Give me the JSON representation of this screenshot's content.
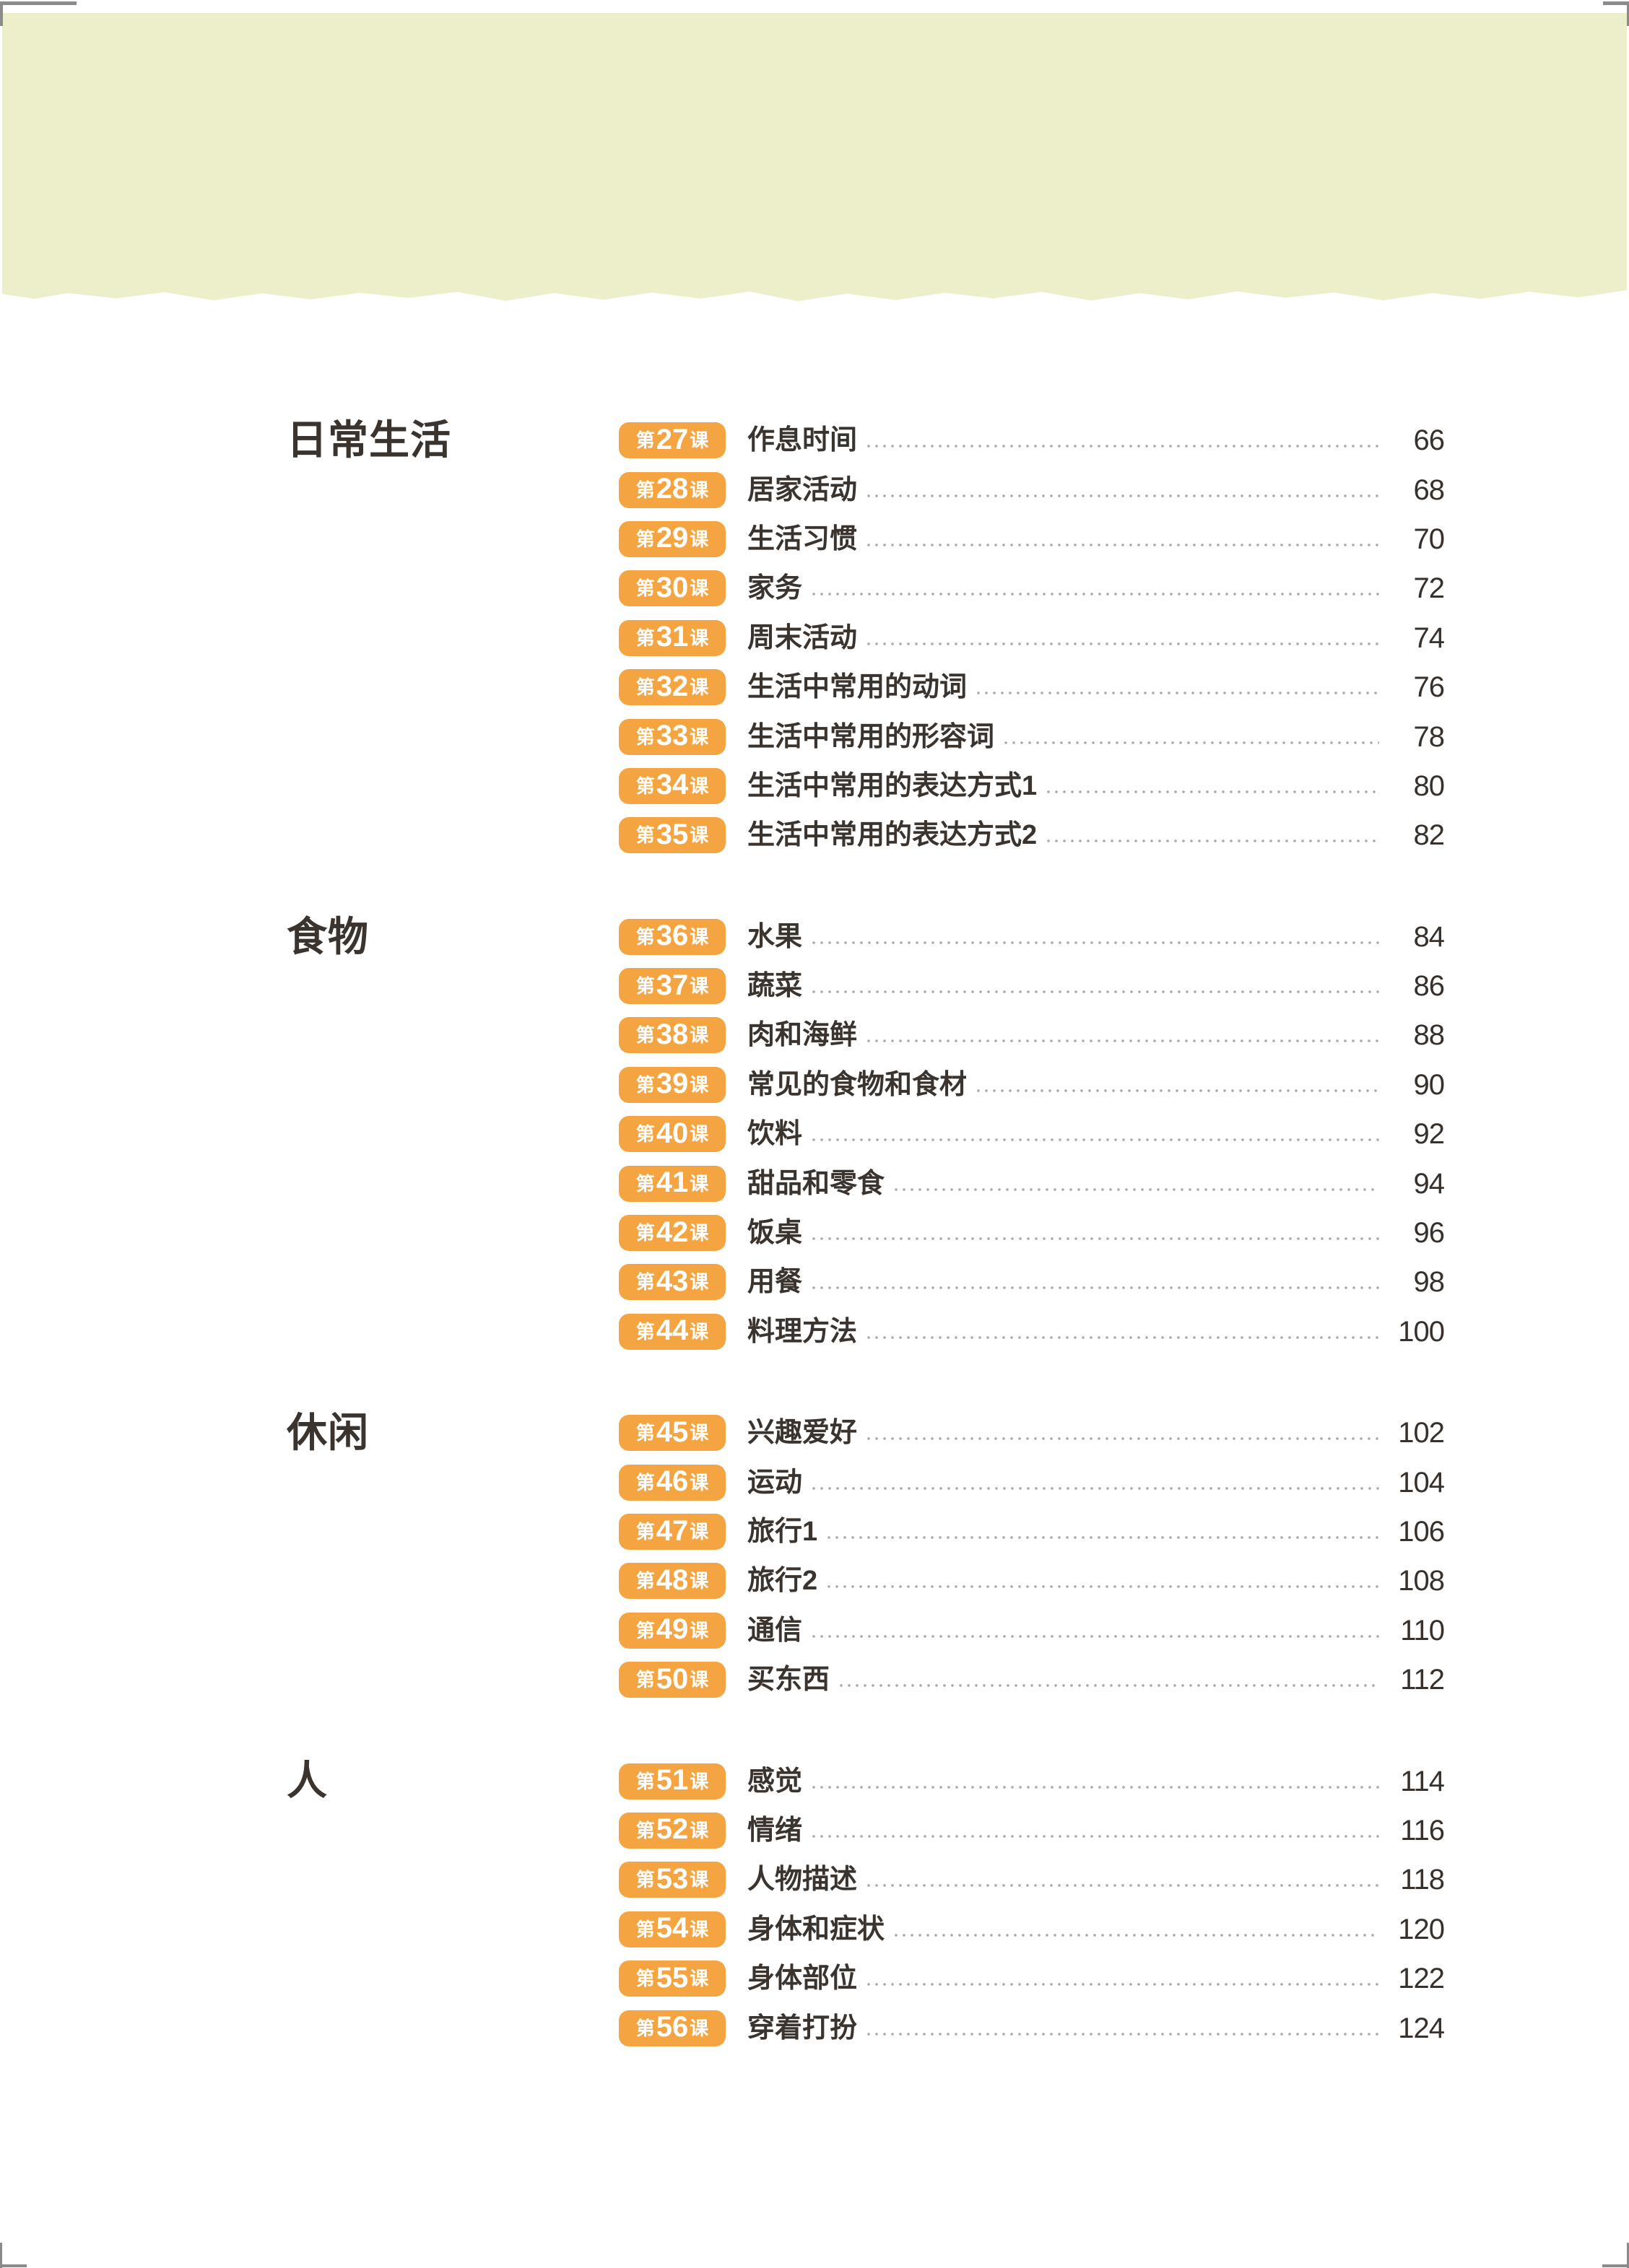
{
  "colors": {
    "band": "#edefcb",
    "accent": "#f4a441",
    "ink": "#3a332e",
    "page_number": "#37302b",
    "dots": "#b1aba6",
    "badge_text": "#ffffff"
  },
  "badge": {
    "prefix": "第",
    "suffix": "课"
  },
  "toc": {
    "sections": [
      {
        "name": "日常生活",
        "lessons": [
          {
            "num": "27",
            "title": "作息时间",
            "page": "66"
          },
          {
            "num": "28",
            "title": "居家活动",
            "page": "68"
          },
          {
            "num": "29",
            "title": "生活习惯",
            "page": "70"
          },
          {
            "num": "30",
            "title": "家务",
            "page": "72"
          },
          {
            "num": "31",
            "title": "周末活动",
            "page": "74"
          },
          {
            "num": "32",
            "title": "生活中常用的动词",
            "page": "76"
          },
          {
            "num": "33",
            "title": "生活中常用的形容词",
            "page": "78"
          },
          {
            "num": "34",
            "title": "生活中常用的表达方式1",
            "page": "80"
          },
          {
            "num": "35",
            "title": "生活中常用的表达方式2",
            "page": "82"
          }
        ]
      },
      {
        "name": "食物",
        "lessons": [
          {
            "num": "36",
            "title": "水果",
            "page": "84"
          },
          {
            "num": "37",
            "title": "蔬菜",
            "page": "86"
          },
          {
            "num": "38",
            "title": "肉和海鲜",
            "page": "88"
          },
          {
            "num": "39",
            "title": "常见的食物和食材",
            "page": "90"
          },
          {
            "num": "40",
            "title": "饮料",
            "page": "92"
          },
          {
            "num": "41",
            "title": "甜品和零食",
            "page": "94"
          },
          {
            "num": "42",
            "title": "饭桌",
            "page": "96"
          },
          {
            "num": "43",
            "title": "用餐",
            "page": "98"
          },
          {
            "num": "44",
            "title": "料理方法",
            "page": "100"
          }
        ]
      },
      {
        "name": "休闲",
        "lessons": [
          {
            "num": "45",
            "title": "兴趣爱好",
            "page": "102"
          },
          {
            "num": "46",
            "title": "运动",
            "page": "104"
          },
          {
            "num": "47",
            "title": "旅行1",
            "page": "106"
          },
          {
            "num": "48",
            "title": "旅行2",
            "page": "108"
          },
          {
            "num": "49",
            "title": "通信",
            "page": "110"
          },
          {
            "num": "50",
            "title": "买东西",
            "page": "112"
          }
        ]
      },
      {
        "name": "人",
        "lessons": [
          {
            "num": "51",
            "title": "感觉",
            "page": "114"
          },
          {
            "num": "52",
            "title": "情绪",
            "page": "116"
          },
          {
            "num": "53",
            "title": "人物描述",
            "page": "118"
          },
          {
            "num": "54",
            "title": "身体和症状",
            "page": "120"
          },
          {
            "num": "55",
            "title": "身体部位",
            "page": "122"
          },
          {
            "num": "56",
            "title": "穿着打扮",
            "page": "124"
          }
        ]
      }
    ]
  }
}
